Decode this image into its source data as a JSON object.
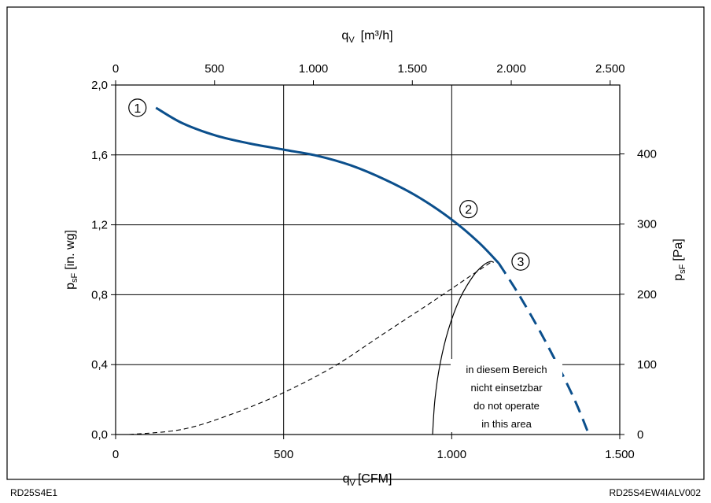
{
  "chart_data": {
    "type": "line",
    "x_bottom": {
      "label": "q",
      "label_sub": "V",
      "unit": "[CFM]",
      "ticks": [
        "0",
        "500",
        "1.000",
        "1.500"
      ],
      "range": [
        0,
        1500
      ]
    },
    "x_top": {
      "label": "q",
      "label_sub": "V",
      "unit": "[m³/h]",
      "ticks": [
        "0",
        "500",
        "1.000",
        "1.500",
        "2.000",
        "2.500"
      ],
      "range": [
        0,
        2548.5
      ]
    },
    "y_left": {
      "label": "p",
      "label_sub": "sF",
      "unit": "[in. wg]",
      "ticks": [
        "2,0",
        "1,6",
        "1,2",
        "0,8",
        "0,4",
        "0,0"
      ],
      "range": [
        0,
        2.0
      ]
    },
    "y_right": {
      "label": "p",
      "label_sub": "sF",
      "unit": "[Pa]",
      "ticks": [
        "400",
        "300",
        "200",
        "100",
        "0"
      ],
      "range": [
        0,
        498.2
      ]
    },
    "grid": true,
    "series": [
      {
        "style": "solid",
        "color": "#0b4f8c",
        "points": [
          [
            120,
            1.87
          ],
          [
            200,
            1.78
          ],
          [
            300,
            1.71
          ],
          [
            400,
            1.665
          ],
          [
            500,
            1.63
          ],
          [
            600,
            1.595
          ],
          [
            700,
            1.54
          ],
          [
            800,
            1.46
          ],
          [
            900,
            1.36
          ],
          [
            1000,
            1.23
          ],
          [
            1080,
            1.1
          ],
          [
            1140,
            0.98
          ]
        ]
      },
      {
        "style": "dashed",
        "color": "#0b4f8c",
        "points": [
          [
            1140,
            0.98
          ],
          [
            1200,
            0.8
          ],
          [
            1260,
            0.6
          ],
          [
            1320,
            0.38
          ],
          [
            1370,
            0.18
          ],
          [
            1408,
            0.0
          ]
        ]
      },
      {
        "style": "dashed-thin",
        "color": "#000000",
        "points": [
          [
            40,
            0.0
          ],
          [
            200,
            0.03
          ],
          [
            350,
            0.12
          ],
          [
            500,
            0.24
          ],
          [
            650,
            0.39
          ],
          [
            800,
            0.58
          ],
          [
            950,
            0.77
          ],
          [
            1050,
            0.9
          ],
          [
            1120,
            0.99
          ]
        ]
      },
      {
        "style": "solid-thin",
        "color": "#000000",
        "points": [
          [
            943,
            0.0
          ],
          [
            950,
            0.2
          ],
          [
            965,
            0.4
          ],
          [
            990,
            0.6
          ],
          [
            1025,
            0.78
          ],
          [
            1065,
            0.91
          ],
          [
            1095,
            0.97
          ],
          [
            1115,
            0.99
          ],
          [
            1125,
            0.985
          ]
        ]
      }
    ],
    "markers": [
      {
        "label": "1",
        "x": 65,
        "y": 1.87
      },
      {
        "label": "2",
        "x": 1050,
        "y": 1.29
      },
      {
        "label": "3",
        "x": 1205,
        "y": 0.99
      }
    ],
    "annotation": {
      "lines": [
        "in diesem Bereich",
        "nicht einsetzbar",
        "do not operate",
        "in this area"
      ],
      "x": 1150,
      "y": 0.39
    }
  },
  "footer": {
    "left_code": "RD25S4E1",
    "right_code": "RD25S4EW4IALV002"
  }
}
